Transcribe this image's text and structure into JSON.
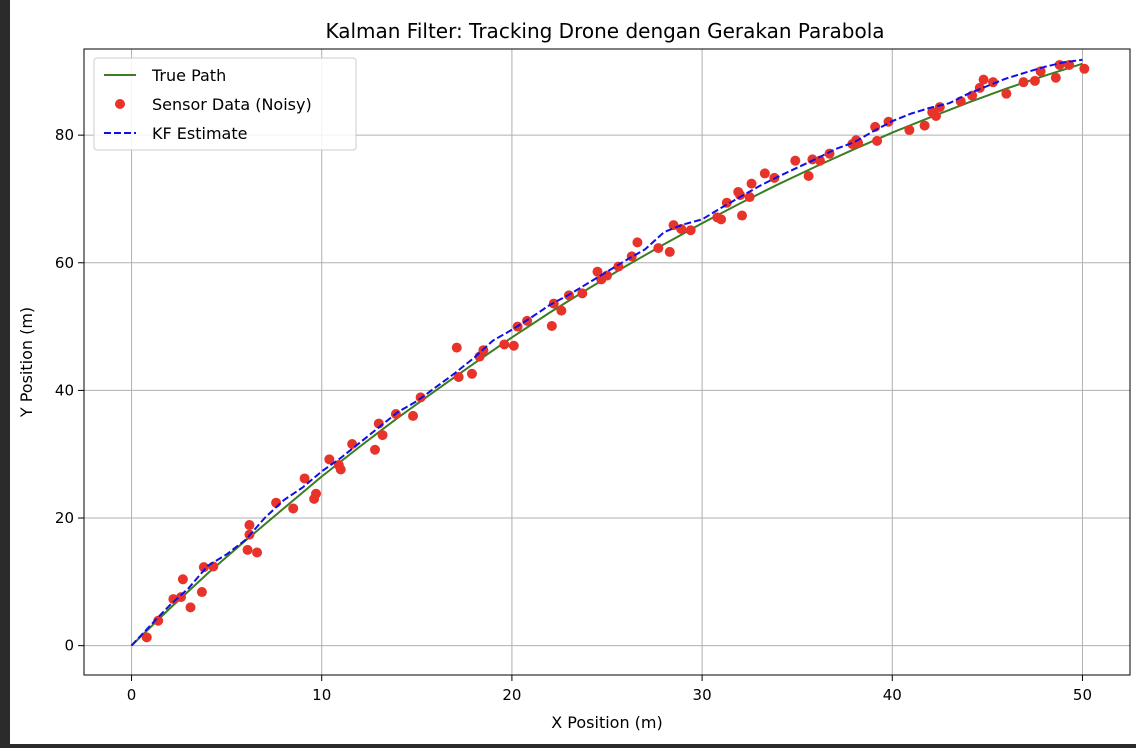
{
  "chart_data": {
    "type": "line",
    "title": "Kalman Filter: Tracking Drone dengan Gerakan Parabola",
    "xlabel": "X Position (m)",
    "ylabel": "Y Position (m)",
    "xlim": [
      -2.5,
      52.5
    ],
    "ylim": [
      -4.6,
      93.5
    ],
    "xticks": [
      0,
      10,
      20,
      30,
      40,
      50
    ],
    "yticks": [
      0,
      20,
      40,
      60,
      80
    ],
    "grid": true,
    "legend_position": "upper-left",
    "series": [
      {
        "name": "True Path",
        "kind": "line",
        "color": "#3a7d22",
        "x": [
          0,
          2,
          4,
          6,
          8,
          10,
          12,
          14,
          16,
          18,
          20,
          22,
          24,
          26,
          28,
          30,
          32,
          34,
          36,
          38,
          40,
          42,
          44,
          46,
          48,
          50
        ],
        "y": [
          0,
          5.8,
          11.3,
          16.5,
          21.5,
          26.5,
          31.2,
          35.7,
          40.0,
          44.2,
          48.3,
          52.2,
          55.9,
          59.5,
          62.9,
          66.2,
          69.3,
          72.3,
          75.1,
          77.8,
          80.4,
          82.8,
          85.1,
          87.3,
          89.3,
          91.2
        ]
      },
      {
        "name": "Sensor Data (Noisy)",
        "kind": "scatter",
        "color": "#e8332a",
        "x": [
          0.8,
          1.4,
          2.2,
          2.6,
          2.7,
          3.1,
          3.7,
          3.8,
          4.3,
          6.1,
          6.2,
          6.2,
          6.6,
          7.6,
          8.5,
          9.1,
          9.6,
          9.7,
          10.4,
          10.9,
          11.0,
          11.6,
          12.8,
          13.0,
          13.2,
          13.9,
          14.8,
          15.2,
          17.1,
          17.2,
          17.9,
          18.3,
          18.5,
          19.6,
          20.1,
          20.3,
          20.8,
          22.1,
          22.2,
          22.6,
          23.0,
          23.7,
          24.5,
          24.7,
          25.0,
          25.6,
          26.3,
          26.6,
          27.7,
          28.3,
          28.5,
          28.9,
          29.4,
          30.8,
          31.0,
          31.3,
          31.9,
          32.0,
          32.1,
          32.5,
          32.6,
          33.3,
          33.8,
          34.9,
          35.6,
          35.8,
          36.2,
          36.7,
          37.9,
          38.1,
          38.2,
          39.1,
          39.2,
          39.8,
          40.9,
          41.7,
          42.1,
          42.3,
          42.5,
          43.6,
          44.2,
          44.6,
          44.8,
          45.3,
          46.0,
          46.9,
          47.5,
          47.8,
          48.6,
          48.8,
          49.3,
          50.1
        ],
        "y": [
          1.3,
          3.9,
          7.3,
          7.6,
          10.4,
          6.0,
          8.4,
          12.3,
          12.4,
          15.0,
          17.4,
          18.9,
          14.6,
          22.4,
          21.5,
          26.2,
          23.0,
          23.8,
          29.2,
          28.3,
          27.6,
          31.6,
          30.7,
          34.8,
          33.0,
          36.3,
          36.0,
          38.9,
          46.7,
          42.1,
          42.6,
          45.3,
          46.3,
          47.2,
          47.0,
          50.0,
          50.9,
          50.1,
          53.6,
          52.5,
          54.9,
          55.2,
          58.6,
          57.4,
          58.0,
          59.4,
          61.0,
          63.2,
          62.3,
          61.7,
          65.9,
          65.3,
          65.1,
          67.1,
          66.8,
          69.4,
          71.1,
          70.6,
          67.4,
          70.3,
          72.4,
          74.0,
          73.3,
          76.0,
          73.6,
          76.2,
          76.0,
          77.1,
          78.6,
          79.2,
          78.8,
          81.3,
          79.1,
          82.1,
          80.8,
          81.5,
          83.6,
          83.0,
          84.4,
          85.3,
          86.2,
          87.4,
          88.7,
          88.3,
          86.5,
          88.3,
          88.5,
          90.0,
          89.0,
          91.0,
          91.0,
          90.4
        ]
      },
      {
        "name": "KF Estimate",
        "kind": "dashed-line",
        "color": "#1010e6",
        "x": [
          0,
          1,
          2,
          3,
          4,
          5,
          6,
          7,
          8,
          9,
          10,
          11,
          12,
          13,
          14,
          15,
          16,
          17,
          18,
          19,
          20,
          21,
          22,
          23,
          24,
          25,
          26,
          27,
          28,
          29,
          30,
          31,
          32,
          33,
          34,
          35,
          36,
          37,
          38,
          39,
          40,
          41,
          42,
          43,
          44,
          45,
          46,
          47,
          48,
          49,
          50
        ],
        "y": [
          0,
          3.2,
          6.3,
          9.0,
          12.5,
          14.3,
          16.6,
          20.0,
          22.8,
          24.8,
          27.3,
          29.4,
          31.8,
          34.2,
          36.6,
          38.3,
          40.5,
          42.7,
          45.1,
          47.8,
          49.5,
          51.4,
          53.4,
          55.0,
          56.8,
          58.6,
          60.4,
          62.1,
          64.8,
          66.0,
          66.8,
          68.6,
          70.3,
          72.0,
          73.5,
          74.9,
          76.3,
          77.8,
          78.9,
          80.6,
          82.2,
          83.4,
          84.3,
          85.0,
          86.5,
          87.7,
          88.9,
          89.8,
          90.7,
          91.4,
          91.8
        ]
      }
    ]
  }
}
